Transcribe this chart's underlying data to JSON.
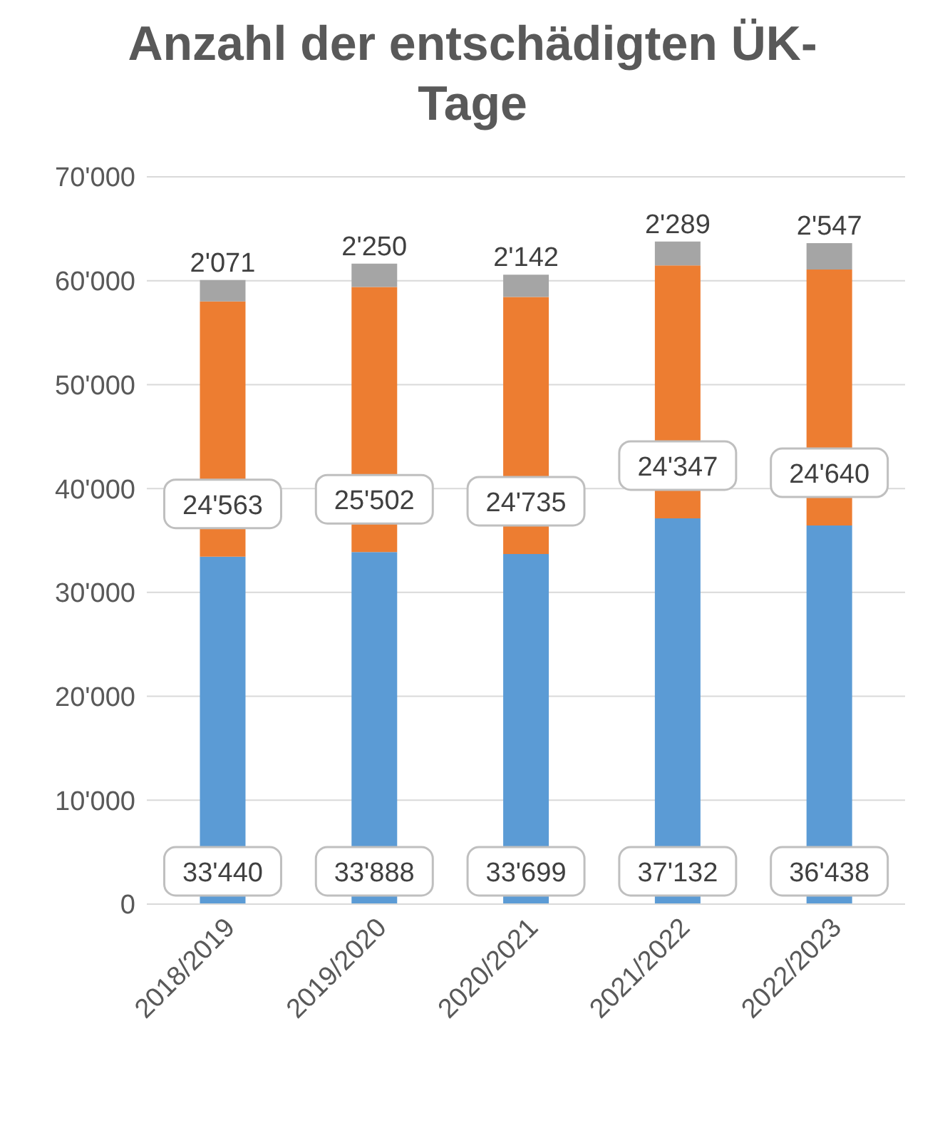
{
  "chart_data": {
    "type": "bar",
    "title": "Anzahl der entschädigten ÜK-Tage",
    "stacked": true,
    "categories": [
      "2018/2019",
      "2019/2020",
      "2020/2021",
      "2021/2022",
      "2022/2023"
    ],
    "series": [
      {
        "color": "#5b9bd5",
        "values": [
          33440,
          33888,
          33699,
          37132,
          36438
        ],
        "value_labels": [
          "33'440",
          "33'888",
          "33'699",
          "37'132",
          "36'438"
        ]
      },
      {
        "color": "#ed7d31",
        "values": [
          24563,
          25502,
          24735,
          24347,
          24640
        ],
        "value_labels": [
          "24'563",
          "25'502",
          "24'735",
          "24'347",
          "24'640"
        ]
      },
      {
        "color": "#a5a5a5",
        "values": [
          2071,
          2250,
          2142,
          2289,
          2547
        ],
        "value_labels": [
          "2'071",
          "2'250",
          "2'142",
          "2'289",
          "2'547"
        ]
      }
    ],
    "ylim": [
      0,
      70000
    ],
    "yticks": [
      {
        "value": 0,
        "label": "0"
      },
      {
        "value": 10000,
        "label": "10'000"
      },
      {
        "value": 20000,
        "label": "20'000"
      },
      {
        "value": 30000,
        "label": "30'000"
      },
      {
        "value": 40000,
        "label": "40'000"
      },
      {
        "value": 50000,
        "label": "50'000"
      },
      {
        "value": 60000,
        "label": "60'000"
      },
      {
        "value": 70000,
        "label": "70'000"
      }
    ],
    "grid": "y",
    "legend": false
  }
}
